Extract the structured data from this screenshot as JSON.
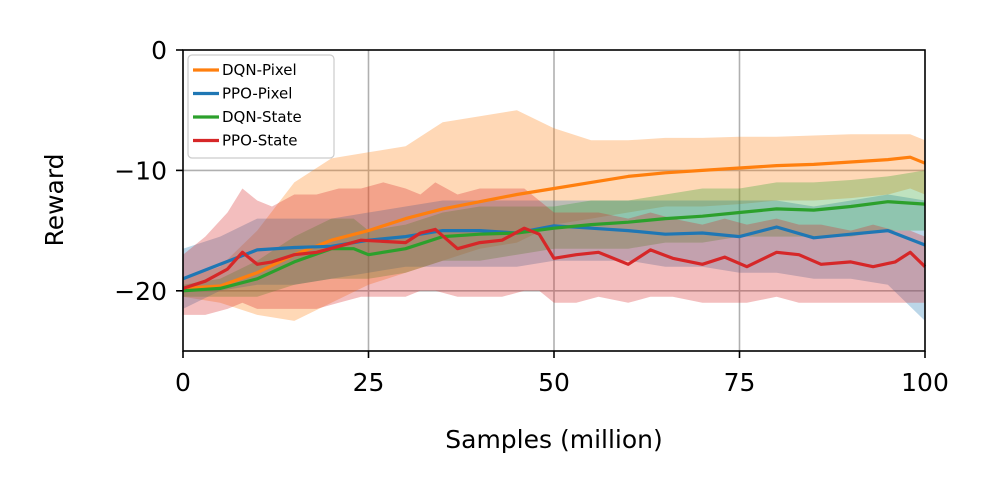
{
  "chart_data": {
    "type": "line",
    "xlabel": "Samples (million)",
    "ylabel": "Reward",
    "xlim": [
      0,
      100
    ],
    "ylim": [
      -25,
      0
    ],
    "xticks": [
      0,
      25,
      50,
      75,
      100
    ],
    "xtick_labels": [
      "0",
      "25",
      "50",
      "75",
      "100"
    ],
    "yticks": [
      0,
      -10,
      -20
    ],
    "ytick_labels": [
      "0",
      "−10",
      "−20"
    ],
    "grid": true,
    "legend_position": "top-left",
    "series": [
      {
        "name": "DQN-Pixel",
        "color": "#ff7f0e",
        "x": [
          0,
          5,
          10,
          15,
          20,
          25,
          30,
          35,
          40,
          45,
          50,
          55,
          60,
          65,
          70,
          75,
          80,
          85,
          90,
          95,
          98,
          100
        ],
        "y": [
          -19.8,
          -19.6,
          -18.5,
          -17.0,
          -15.8,
          -15.0,
          -14.0,
          -13.2,
          -12.6,
          -12.0,
          -11.5,
          -11.0,
          -10.5,
          -10.2,
          -10.0,
          -9.8,
          -9.6,
          -9.5,
          -9.3,
          -9.1,
          -8.9,
          -9.4
        ],
        "upper": [
          -19.0,
          -18.0,
          -15.0,
          -11.0,
          -9.0,
          -8.5,
          -8.0,
          -6.0,
          -5.5,
          -5.0,
          -6.5,
          -7.5,
          -7.5,
          -7.3,
          -7.3,
          -7.2,
          -7.2,
          -7.1,
          -7.0,
          -7.0,
          -7.0,
          -7.5
        ],
        "lower": [
          -20.5,
          -21.0,
          -22.0,
          -22.5,
          -21.0,
          -19.5,
          -18.5,
          -17.5,
          -16.5,
          -16.0,
          -14.5,
          -14.0,
          -13.5,
          -13.0,
          -13.0,
          -12.8,
          -12.5,
          -12.5,
          -12.3,
          -12.0,
          -11.5,
          -12.0
        ]
      },
      {
        "name": "PPO-Pixel",
        "color": "#1f77b4",
        "x": [
          0,
          5,
          10,
          15,
          20,
          25,
          30,
          35,
          40,
          45,
          50,
          55,
          60,
          65,
          70,
          75,
          80,
          85,
          90,
          95,
          100
        ],
        "y": [
          -19.0,
          -17.8,
          -16.6,
          -16.4,
          -16.3,
          -15.8,
          -15.5,
          -15.0,
          -15.0,
          -15.2,
          -14.6,
          -14.8,
          -15.0,
          -15.3,
          -15.2,
          -15.5,
          -14.7,
          -15.6,
          -15.3,
          -15.0,
          -16.2
        ],
        "upper": [
          -16.5,
          -15.5,
          -14.0,
          -14.0,
          -14.0,
          -13.5,
          -13.0,
          -12.5,
          -12.5,
          -12.5,
          -12.5,
          -12.5,
          -12.5,
          -12.5,
          -12.5,
          -12.5,
          -12.5,
          -13.0,
          -12.5,
          -12.0,
          -12.5
        ],
        "lower": [
          -21.5,
          -20.0,
          -19.5,
          -19.5,
          -19.0,
          -18.5,
          -18.0,
          -18.0,
          -18.0,
          -18.0,
          -17.5,
          -17.5,
          -17.5,
          -18.0,
          -18.0,
          -18.5,
          -18.5,
          -19.0,
          -19.0,
          -19.5,
          -22.5
        ]
      },
      {
        "name": "DQN-State",
        "color": "#2ca02c",
        "x": [
          0,
          5,
          10,
          15,
          20,
          23,
          25,
          30,
          35,
          40,
          45,
          50,
          55,
          60,
          65,
          70,
          75,
          80,
          85,
          90,
          95,
          100
        ],
        "y": [
          -20.0,
          -19.8,
          -19.0,
          -17.6,
          -16.5,
          -16.5,
          -17.0,
          -16.5,
          -15.5,
          -15.3,
          -15.2,
          -14.8,
          -14.5,
          -14.3,
          -14.0,
          -13.8,
          -13.5,
          -13.2,
          -13.3,
          -13.0,
          -12.6,
          -12.8
        ],
        "upper": [
          -19.5,
          -19.0,
          -17.5,
          -15.5,
          -14.0,
          -14.0,
          -15.0,
          -14.5,
          -13.5,
          -13.0,
          -13.0,
          -13.0,
          -12.5,
          -12.5,
          -12.0,
          -11.5,
          -11.5,
          -11.0,
          -11.0,
          -10.8,
          -10.5,
          -10.0
        ],
        "lower": [
          -20.5,
          -20.5,
          -20.5,
          -19.5,
          -19.0,
          -19.0,
          -19.0,
          -18.5,
          -17.5,
          -17.5,
          -17.0,
          -16.5,
          -16.5,
          -16.5,
          -16.0,
          -16.0,
          -15.5,
          -15.5,
          -15.5,
          -15.5,
          -15.0,
          -15.0
        ]
      },
      {
        "name": "PPO-State",
        "color": "#d62728",
        "x": [
          0,
          3,
          6,
          8,
          10,
          12,
          15,
          18,
          21,
          24,
          27,
          30,
          32,
          34,
          37,
          40,
          43,
          46,
          48,
          50,
          53,
          56,
          60,
          63,
          66,
          70,
          73,
          76,
          80,
          83,
          86,
          90,
          93,
          96,
          98,
          100
        ],
        "y": [
          -19.8,
          -19.2,
          -18.2,
          -16.8,
          -17.8,
          -17.6,
          -17.0,
          -16.8,
          -16.3,
          -15.8,
          -15.9,
          -16.0,
          -15.2,
          -14.9,
          -16.5,
          -16.0,
          -15.8,
          -14.8,
          -15.3,
          -17.3,
          -17.0,
          -16.8,
          -17.8,
          -16.6,
          -17.3,
          -17.8,
          -17.2,
          -18.0,
          -16.8,
          -17.0,
          -17.8,
          -17.6,
          -18.0,
          -17.6,
          -16.8,
          -18.0
        ],
        "upper": [
          -17.0,
          -15.5,
          -13.5,
          -11.5,
          -12.5,
          -13.0,
          -12.0,
          -12.0,
          -11.5,
          -11.5,
          -11.0,
          -11.5,
          -12.0,
          -11.0,
          -12.0,
          -11.5,
          -11.5,
          -11.5,
          -12.5,
          -13.5,
          -13.5,
          -13.5,
          -14.0,
          -13.5,
          -14.0,
          -14.5,
          -14.0,
          -14.5,
          -14.0,
          -14.5,
          -14.5,
          -15.0,
          -14.5,
          -15.0,
          -15.0,
          -15.5
        ],
        "lower": [
          -22.0,
          -22.0,
          -21.5,
          -21.0,
          -21.5,
          -21.5,
          -21.5,
          -21.5,
          -21.0,
          -20.5,
          -20.5,
          -20.5,
          -20.0,
          -20.0,
          -20.5,
          -20.5,
          -20.5,
          -20.0,
          -20.0,
          -21.0,
          -21.0,
          -20.5,
          -21.0,
          -20.5,
          -20.5,
          -21.0,
          -21.0,
          -21.0,
          -20.5,
          -21.0,
          -21.0,
          -21.0,
          -21.0,
          -21.0,
          -21.0,
          -21.0
        ]
      }
    ]
  }
}
